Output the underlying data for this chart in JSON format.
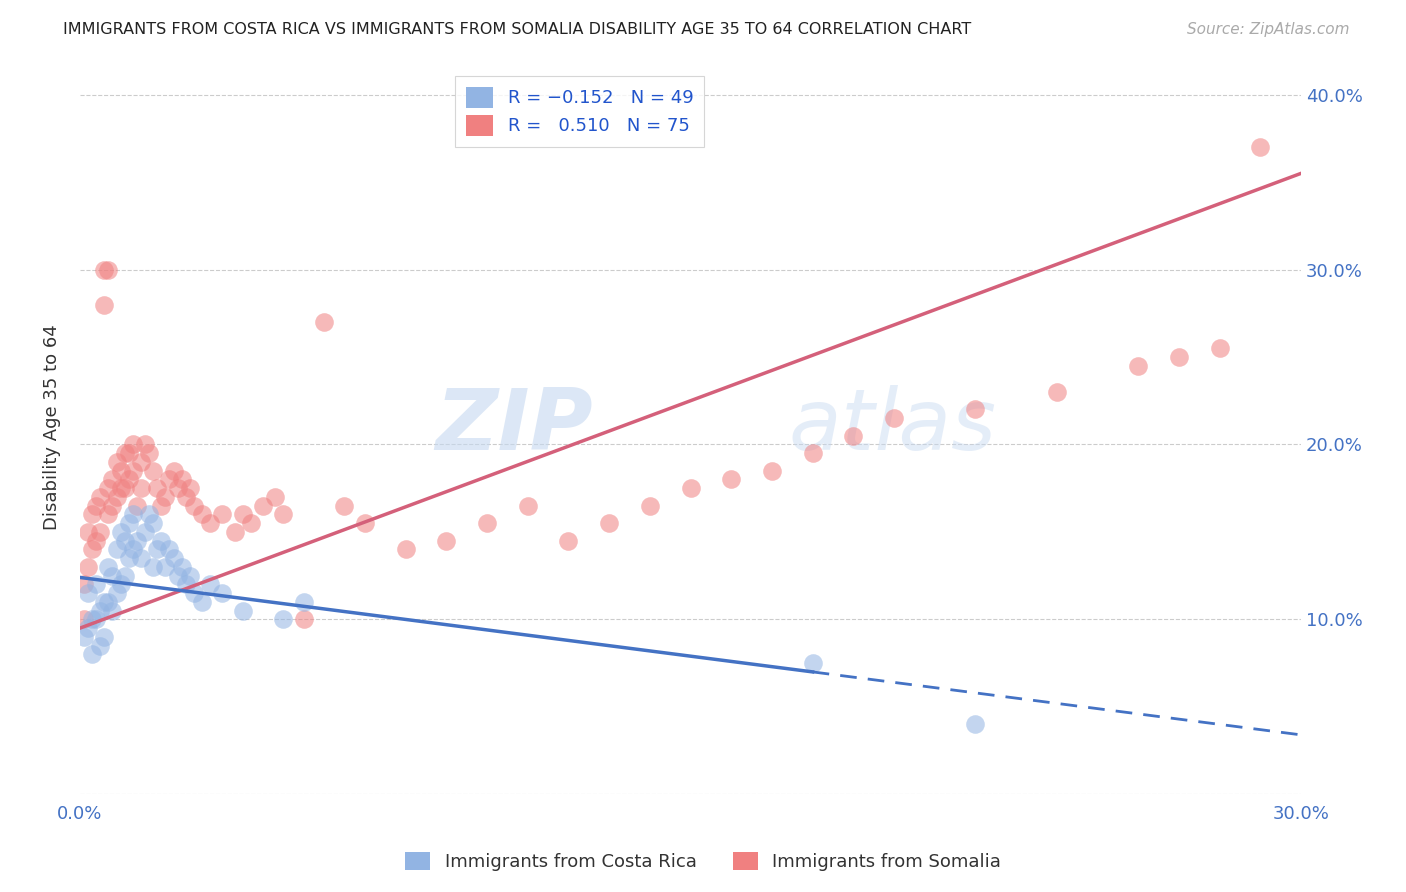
{
  "title": "IMMIGRANTS FROM COSTA RICA VS IMMIGRANTS FROM SOMALIA DISABILITY AGE 35 TO 64 CORRELATION CHART",
  "source": "Source: ZipAtlas.com",
  "ylabel": "Disability Age 35 to 64",
  "xlim": [
    0.0,
    0.3
  ],
  "ylim": [
    0.0,
    0.42
  ],
  "xticks": [
    0.0,
    0.05,
    0.1,
    0.15,
    0.2,
    0.25,
    0.3
  ],
  "yticks": [
    0.0,
    0.1,
    0.2,
    0.3,
    0.4
  ],
  "xtick_labels": [
    "0.0%",
    "",
    "",
    "",
    "",
    "",
    "30.0%"
  ],
  "right_ytick_labels": [
    "40.0%",
    "30.0%",
    "20.0%",
    "10.0%",
    ""
  ],
  "costa_rica_R": -0.152,
  "costa_rica_N": 49,
  "somalia_R": 0.51,
  "somalia_N": 75,
  "costa_rica_color": "#92b4e3",
  "somalia_color": "#f08080",
  "costa_rica_line_color": "#4472c4",
  "somalia_line_color": "#d4607a",
  "watermark_zip": "ZIP",
  "watermark_atlas": "atlas",
  "costa_rica_x": [
    0.001,
    0.002,
    0.002,
    0.003,
    0.003,
    0.004,
    0.004,
    0.005,
    0.005,
    0.006,
    0.006,
    0.007,
    0.007,
    0.008,
    0.008,
    0.009,
    0.009,
    0.01,
    0.01,
    0.011,
    0.011,
    0.012,
    0.012,
    0.013,
    0.013,
    0.014,
    0.015,
    0.016,
    0.017,
    0.018,
    0.018,
    0.019,
    0.02,
    0.021,
    0.022,
    0.023,
    0.024,
    0.025,
    0.026,
    0.027,
    0.028,
    0.03,
    0.032,
    0.035,
    0.04,
    0.05,
    0.055,
    0.18,
    0.22
  ],
  "costa_rica_y": [
    0.09,
    0.115,
    0.095,
    0.1,
    0.08,
    0.12,
    0.1,
    0.105,
    0.085,
    0.11,
    0.09,
    0.13,
    0.11,
    0.125,
    0.105,
    0.14,
    0.115,
    0.15,
    0.12,
    0.145,
    0.125,
    0.155,
    0.135,
    0.16,
    0.14,
    0.145,
    0.135,
    0.15,
    0.16,
    0.155,
    0.13,
    0.14,
    0.145,
    0.13,
    0.14,
    0.135,
    0.125,
    0.13,
    0.12,
    0.125,
    0.115,
    0.11,
    0.12,
    0.115,
    0.105,
    0.1,
    0.11,
    0.075,
    0.04
  ],
  "somalia_x": [
    0.001,
    0.001,
    0.002,
    0.002,
    0.003,
    0.003,
    0.004,
    0.004,
    0.005,
    0.005,
    0.006,
    0.006,
    0.007,
    0.007,
    0.007,
    0.008,
    0.008,
    0.009,
    0.009,
    0.01,
    0.01,
    0.011,
    0.011,
    0.012,
    0.012,
    0.013,
    0.013,
    0.014,
    0.015,
    0.015,
    0.016,
    0.017,
    0.018,
    0.019,
    0.02,
    0.021,
    0.022,
    0.023,
    0.024,
    0.025,
    0.026,
    0.027,
    0.028,
    0.03,
    0.032,
    0.035,
    0.038,
    0.04,
    0.042,
    0.045,
    0.048,
    0.05,
    0.055,
    0.06,
    0.065,
    0.07,
    0.08,
    0.09,
    0.1,
    0.11,
    0.12,
    0.13,
    0.14,
    0.15,
    0.16,
    0.17,
    0.18,
    0.19,
    0.2,
    0.22,
    0.24,
    0.26,
    0.27,
    0.28,
    0.29
  ],
  "somalia_y": [
    0.1,
    0.12,
    0.13,
    0.15,
    0.14,
    0.16,
    0.145,
    0.165,
    0.15,
    0.17,
    0.3,
    0.28,
    0.16,
    0.175,
    0.3,
    0.165,
    0.18,
    0.17,
    0.19,
    0.175,
    0.185,
    0.175,
    0.195,
    0.18,
    0.195,
    0.185,
    0.2,
    0.165,
    0.175,
    0.19,
    0.2,
    0.195,
    0.185,
    0.175,
    0.165,
    0.17,
    0.18,
    0.185,
    0.175,
    0.18,
    0.17,
    0.175,
    0.165,
    0.16,
    0.155,
    0.16,
    0.15,
    0.16,
    0.155,
    0.165,
    0.17,
    0.16,
    0.1,
    0.27,
    0.165,
    0.155,
    0.14,
    0.145,
    0.155,
    0.165,
    0.145,
    0.155,
    0.165,
    0.175,
    0.18,
    0.185,
    0.195,
    0.205,
    0.215,
    0.22,
    0.23,
    0.245,
    0.25,
    0.255,
    0.37
  ]
}
